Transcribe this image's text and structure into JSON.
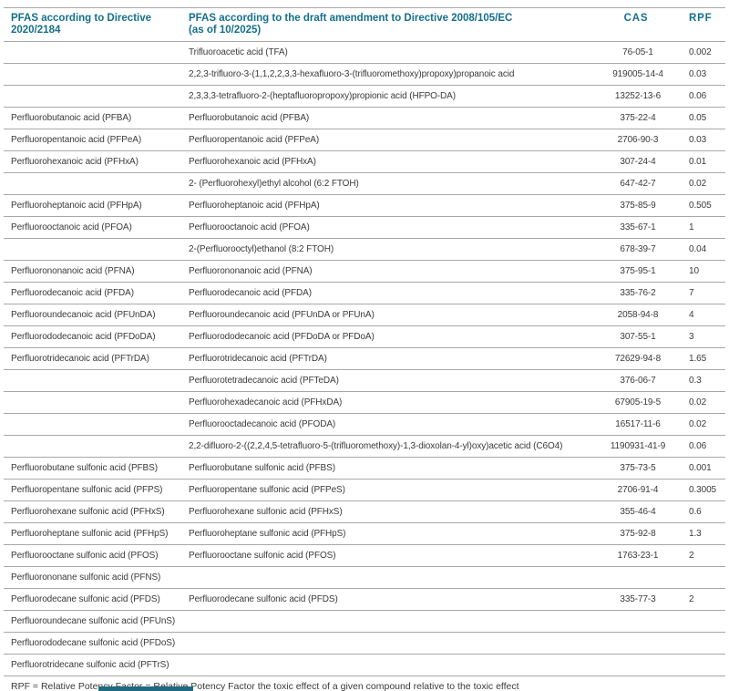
{
  "colors": {
    "accent": "#156f8c",
    "border": "#a8a8a8",
    "text": "#3a3a3a",
    "bottom_bar": "#1f6a80"
  },
  "table": {
    "headers": [
      "PFAS according to Directive\n2020/2184",
      "PFAS according to the draft amendment to Directive 2008/105/EC\n(as of 10/2025)",
      "CAS",
      "RPF"
    ],
    "rows": [
      [
        "",
        "Trifluoroacetic acid (TFA)",
        "76-05-1",
        "0.002"
      ],
      [
        "",
        "2,2,3-trifluoro-3-(1,1,2,2,3,3-hexafluoro-3-(trifluoromethoxy)propoxy)propanoic acid",
        "919005-14-4",
        "0.03"
      ],
      [
        "",
        "2,3,3,3-tetrafluoro-2-(heptafluoropropoxy)propionic acid (HFPO-DA)",
        "13252-13-6",
        "0.06"
      ],
      [
        "Perfluorobutanoic acid (PFBA)",
        "Perfluorobutanoic acid (PFBA)",
        "375-22-4",
        "0.05"
      ],
      [
        "Perfluoropentanoic acid (PFPeA)",
        "Perfluoropentanoic acid (PFPeA)",
        "2706-90-3",
        "0.03"
      ],
      [
        "Perfluorohexanoic acid (PFHxA)",
        "Perfluorohexanoic acid (PFHxA)",
        "307-24-4",
        "0.01"
      ],
      [
        "",
        "2- (Perfluorohexyl)ethyl alcohol (6:2 FTOH)",
        "647-42-7",
        "0.02"
      ],
      [
        "Perfluoroheptanoic acid (PFHpA)",
        "Perfluoroheptanoic acid (PFHpA)",
        "375-85-9",
        "0.505"
      ],
      [
        "Perfluorooctanoic acid (PFOA)",
        "Perfluorooctanoic acid (PFOA)",
        "335-67-1",
        "1"
      ],
      [
        "",
        "2-(Perfluorooctyl)ethanol (8:2 FTOH)",
        "678-39-7",
        "0.04"
      ],
      [
        "Perfluorononanoic acid (PFNA)",
        "Perfluorononanoic acid (PFNA)",
        "375-95-1",
        "10"
      ],
      [
        "Perfluorodecanoic acid (PFDA)",
        "Perfluorodecanoic acid (PFDA)",
        "335-76-2",
        "7"
      ],
      [
        "Perfluoroundecanoic acid (PFUnDA)",
        "Perfluoroundecanoic acid (PFUnDA or PFUnA)",
        "2058-94-8",
        "4"
      ],
      [
        "Perfluorododecanoic acid (PFDoDA)",
        "Perfluorododecanoic acid (PFDoDA or PFDoA)",
        "307-55-1",
        "3"
      ],
      [
        "Perfluorotridecanoic acid (PFTrDA)",
        "Perfluorotridecanoic acid (PFTrDA)",
        "72629-94-8",
        "1.65"
      ],
      [
        "",
        "Perfluorotetradecanoic acid (PFTeDA)",
        "376-06-7",
        "0.3"
      ],
      [
        "",
        "Perfluorohexadecanoic acid (PFHxDA)",
        "67905-19-5",
        "0.02"
      ],
      [
        "",
        "Perfluorooctadecanoic acid (PFODA)",
        "16517-11-6",
        "0.02"
      ],
      [
        "",
        "2,2-difluoro-2-((2,2,4,5-tetrafluoro-5-(trifluoromethoxy)-1,3-dioxolan-4-yl)oxy)acetic acid (C6O4)",
        "1190931-41-9",
        "0.06"
      ],
      [
        "Perfluorobutane sulfonic acid (PFBS)",
        "Perfluorobutane sulfonic acid (PFBS)",
        "375-73-5",
        "0.001"
      ],
      [
        "Perfluoropentane sulfonic acid (PFPS)",
        "Perfluoropentane sulfonic acid (PFPeS)",
        "2706-91-4",
        "0.3005"
      ],
      [
        "Perfluorohexane sulfonic acid (PFHxS)",
        "Perfluorohexane sulfonic acid (PFHxS)",
        "355-46-4",
        "0.6"
      ],
      [
        "Perfluoroheptane sulfonic acid (PFHpS)",
        "Perfluoroheptane sulfonic acid (PFHpS)",
        "375-92-8",
        "1.3"
      ],
      [
        "Perfluorooctane sulfonic acid (PFOS)",
        "Perfluorooctane sulfonic acid (PFOS)",
        "1763-23-1",
        "2"
      ],
      [
        "Perfluorononane sulfonic acid (PFNS)",
        "",
        "",
        ""
      ],
      [
        "Perfluorodecane sulfonic acid (PFDS)",
        "Perfluorodecane sulfonic acid (PFDS)",
        "335-77-3",
        "2"
      ],
      [
        "Perfluoroundecane sulfonic acid (PFUnS)",
        "",
        "",
        ""
      ],
      [
        "Perfluorododecane sulfonic acid (PFDoS)",
        "",
        "",
        ""
      ],
      [
        "Perfluorotridecane sulfonic acid (PFTrS)",
        "",
        "",
        ""
      ]
    ]
  },
  "footnote": "RPF = Relative Potency Factor = Relative Potency Factor the toxic effect of a given compound relative to the toxic effect"
}
